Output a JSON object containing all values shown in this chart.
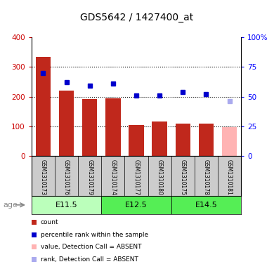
{
  "title": "GDS5642 / 1427400_at",
  "samples": [
    "GSM1310173",
    "GSM1310176",
    "GSM1310179",
    "GSM1310174",
    "GSM1310177",
    "GSM1310180",
    "GSM1310175",
    "GSM1310178",
    "GSM1310181"
  ],
  "count_values": [
    335,
    220,
    193,
    195,
    105,
    117,
    110,
    110,
    97
  ],
  "rank_values": [
    70,
    62,
    59,
    61,
    51,
    51,
    54,
    52,
    46
  ],
  "absent_flags": [
    false,
    false,
    false,
    false,
    false,
    false,
    false,
    false,
    true
  ],
  "bar_color_normal": "#C0281C",
  "bar_color_absent": "#FFB3B3",
  "rank_color_normal": "#0000CC",
  "rank_color_absent": "#AAAAEE",
  "ylim_left": [
    0,
    400
  ],
  "ylim_right": [
    0,
    100
  ],
  "yticks_left": [
    0,
    100,
    200,
    300,
    400
  ],
  "yticks_right": [
    0,
    25,
    50,
    75,
    100
  ],
  "yticklabels_left": [
    "0",
    "100",
    "200",
    "300",
    "400"
  ],
  "yticklabels_right": [
    "0",
    "25",
    "50",
    "75",
    "100%"
  ],
  "age_groups": [
    {
      "label": "E11.5",
      "start": 0,
      "end": 3,
      "color": "#BBFFBB"
    },
    {
      "label": "E12.5",
      "start": 3,
      "end": 6,
      "color": "#55EE55"
    },
    {
      "label": "E14.5",
      "start": 6,
      "end": 9,
      "color": "#55EE55"
    }
  ],
  "legend_items": [
    {
      "label": "count",
      "color": "#C0281C"
    },
    {
      "label": "percentile rank within the sample",
      "color": "#0000CC"
    },
    {
      "label": "value, Detection Call = ABSENT",
      "color": "#FFB3B3"
    },
    {
      "label": "rank, Detection Call = ABSENT",
      "color": "#AAAAEE"
    }
  ]
}
